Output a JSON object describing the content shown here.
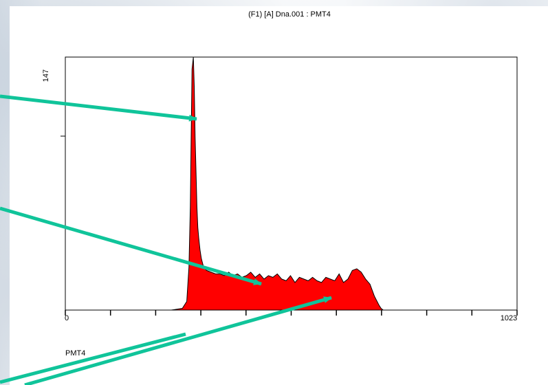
{
  "chart_data": {
    "type": "area",
    "title": "(F1) [A] Dna.001 : PMT4",
    "xlabel": "PMT4",
    "ylabel": "",
    "x_tick_labels": [
      "0",
      "1023"
    ],
    "y_tick_labels": [
      "147"
    ],
    "xlim": [
      0,
      1023
    ],
    "ylim": [
      0,
      147
    ],
    "fill_color": "#ff0000",
    "arrow_color": "#10c49a",
    "x": [
      0,
      200,
      240,
      265,
      275,
      280,
      283,
      285,
      287,
      290,
      292,
      294,
      296,
      298,
      300,
      302,
      305,
      308,
      312,
      316,
      320,
      330,
      340,
      350,
      360,
      370,
      380,
      390,
      400,
      410,
      420,
      430,
      440,
      450,
      460,
      470,
      480,
      490,
      500,
      510,
      520,
      530,
      540,
      550,
      560,
      570,
      580,
      590,
      600,
      610,
      620,
      630,
      640,
      650,
      660,
      670,
      680,
      690,
      700,
      710,
      715,
      720,
      1023
    ],
    "y": [
      0,
      0,
      0,
      1,
      5,
      25,
      60,
      100,
      140,
      147,
      130,
      100,
      80,
      60,
      48,
      42,
      35,
      30,
      26,
      24,
      23,
      22,
      21,
      21,
      20,
      22,
      20,
      21,
      19,
      20,
      22,
      19,
      21,
      18,
      20,
      19,
      21,
      18,
      17,
      20,
      16,
      19,
      18,
      17,
      19,
      17,
      16,
      19,
      18,
      17,
      21,
      16,
      18,
      23,
      24,
      22,
      18,
      15,
      8,
      3,
      1,
      0,
      0
    ]
  }
}
